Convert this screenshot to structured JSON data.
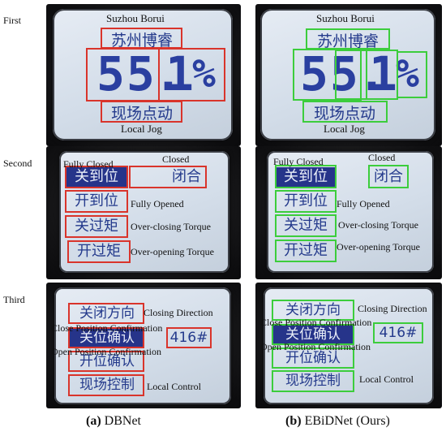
{
  "rows": {
    "first": "First",
    "second": "Second",
    "third": "Third"
  },
  "first": {
    "brand_en": "Suzhou Borui",
    "brand_cn": "苏州博睿",
    "value_int": "55",
    "value_dec": "1",
    "unit": "%",
    "mode_cn": "现场点动",
    "mode_en": "Local Jog"
  },
  "second": {
    "fully_closed_en": "Fully Closed",
    "fully_closed_cn": "关到位",
    "closed_en": "Closed",
    "closed_cn": "闭合",
    "fully_opened_en": "Fully Opened",
    "fully_opened_cn": "开到位",
    "overclosing_en": "Over-closing Torque",
    "overclosing_cn": "关过矩",
    "overopening_en": "Over-opening Torque",
    "overopening_cn": "开过矩"
  },
  "third": {
    "closing_dir_en": "Closing Direction",
    "closing_dir_cn": "关闭方向",
    "close_pos_en": "Close Position Confirmation",
    "close_pos_cn": "关位确认",
    "code": "416#",
    "open_pos_en": "Open Position Confirmation",
    "open_pos_cn": "开位确认",
    "local_ctrl_en": "Local Control",
    "local_ctrl_cn": "现场控制"
  },
  "captions": {
    "a_letter": "(a)",
    "a_name": " DBNet",
    "b_letter": "(b)",
    "b_name": " EBiDNet (Ours)"
  },
  "colors": {
    "dbnet_box": "#d9342b",
    "ebidnet_box": "#3ccd3c",
    "lcd_ink": "#243a8c"
  }
}
